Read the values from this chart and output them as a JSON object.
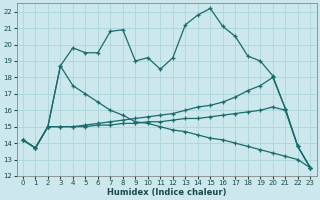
{
  "xlabel": "Humidex (Indice chaleur)",
  "bg_color": "#cce8ec",
  "grid_color": "#b0d8dc",
  "line_color": "#1a6b6b",
  "xlim": [
    -0.5,
    23.5
  ],
  "ylim": [
    12,
    22.5
  ],
  "xticks": [
    0,
    1,
    2,
    3,
    4,
    5,
    6,
    7,
    8,
    9,
    10,
    11,
    12,
    13,
    14,
    15,
    16,
    17,
    18,
    19,
    20,
    21,
    22,
    23
  ],
  "yticks": [
    12,
    13,
    14,
    15,
    16,
    17,
    18,
    19,
    20,
    21,
    22
  ],
  "lines": [
    {
      "x": [
        0,
        1,
        2,
        3,
        4,
        5,
        6,
        7,
        8,
        9,
        10,
        11,
        12,
        13,
        14,
        15,
        16,
        17,
        18,
        19,
        20,
        21,
        22,
        23
      ],
      "y": [
        14.2,
        13.7,
        15.0,
        18.7,
        19.8,
        19.5,
        19.5,
        20.8,
        20.9,
        19.0,
        19.2,
        18.5,
        19.2,
        21.2,
        21.8,
        22.2,
        21.1,
        20.5,
        19.3,
        19.0,
        18.1,
        16.1,
        13.8,
        12.5
      ]
    },
    {
      "x": [
        0,
        1,
        2,
        3,
        4,
        5,
        6,
        7,
        8,
        9,
        10,
        11,
        12,
        13,
        14,
        15,
        16,
        17,
        18,
        19,
        20,
        21,
        22,
        23
      ],
      "y": [
        14.2,
        13.7,
        15.0,
        18.7,
        17.5,
        17.0,
        16.5,
        16.0,
        15.7,
        15.3,
        15.2,
        15.0,
        14.8,
        14.7,
        14.5,
        14.3,
        14.2,
        14.0,
        13.8,
        13.6,
        13.4,
        13.2,
        13.0,
        12.5
      ]
    },
    {
      "x": [
        0,
        1,
        2,
        3,
        4,
        5,
        6,
        7,
        8,
        9,
        10,
        11,
        12,
        13,
        14,
        15,
        16,
        17,
        18,
        19,
        20,
        21,
        22,
        23
      ],
      "y": [
        14.2,
        13.7,
        15.0,
        15.0,
        15.0,
        15.1,
        15.2,
        15.3,
        15.4,
        15.5,
        15.6,
        15.7,
        15.8,
        16.0,
        16.2,
        16.3,
        16.5,
        16.8,
        17.2,
        17.5,
        18.0,
        16.1,
        13.8,
        12.5
      ]
    },
    {
      "x": [
        0,
        1,
        2,
        3,
        4,
        5,
        6,
        7,
        8,
        9,
        10,
        11,
        12,
        13,
        14,
        15,
        16,
        17,
        18,
        19,
        20,
        21,
        22,
        23
      ],
      "y": [
        14.2,
        13.7,
        15.0,
        15.0,
        15.0,
        15.0,
        15.1,
        15.1,
        15.2,
        15.2,
        15.3,
        15.3,
        15.4,
        15.5,
        15.5,
        15.6,
        15.7,
        15.8,
        15.9,
        16.0,
        16.2,
        16.0,
        13.8,
        12.5
      ]
    }
  ]
}
